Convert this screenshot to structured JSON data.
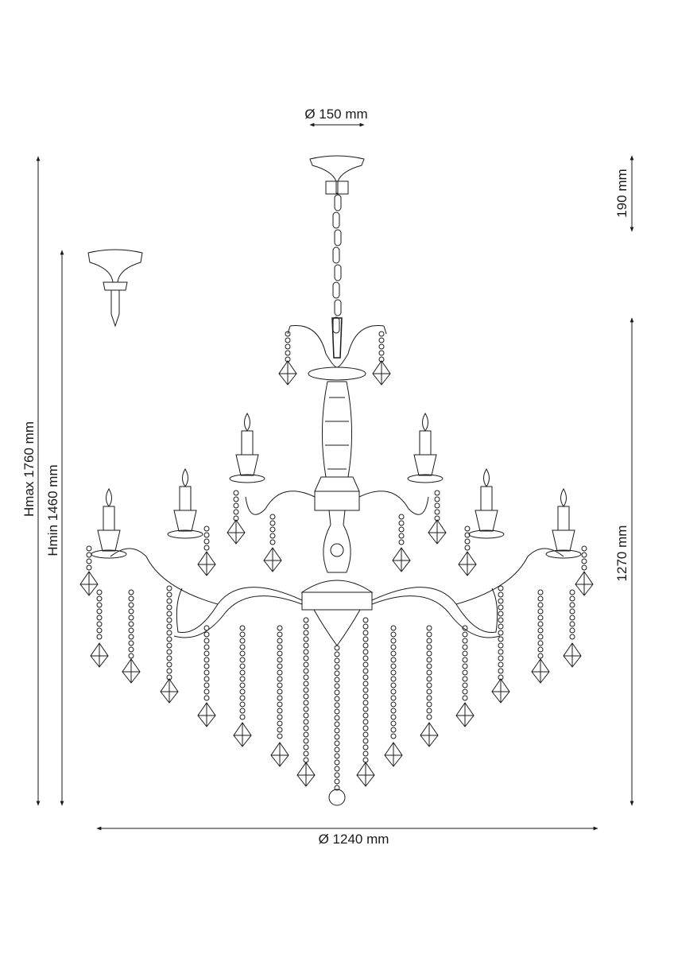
{
  "dimensions": {
    "canopy_diameter": "Ø 150 mm",
    "canopy_height": "190 mm",
    "height_max": "Hmax 1760 mm",
    "height_min": "Hmin 1460 mm",
    "body_height": "1270 mm",
    "overall_diameter": "Ø 1240 mm"
  },
  "colors": {
    "line": "#1a1a1a",
    "background": "#ffffff"
  }
}
